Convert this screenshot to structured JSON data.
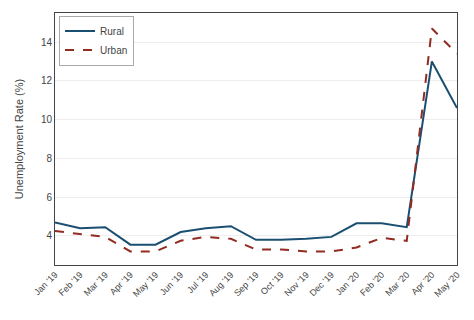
{
  "chart_data": {
    "type": "line",
    "categories": [
      "Jan '19",
      "Feb '19",
      "Mar '19",
      "Apr '19",
      "May '19",
      "Jun '19",
      "Jul '19",
      "Aug '19",
      "Sep '19",
      "Oct '19",
      "Nov '19",
      "Dec '19",
      "Jan '20",
      "Feb '20",
      "Mar '20",
      "Apr '20",
      "May '20"
    ],
    "series": [
      {
        "name": "Rural",
        "color": "#1b4f72",
        "line_style": "solid",
        "values": [
          4.7,
          4.4,
          4.45,
          3.55,
          3.55,
          4.2,
          4.4,
          4.5,
          3.8,
          3.8,
          3.85,
          3.95,
          4.65,
          4.65,
          4.45,
          13.0,
          10.6
        ]
      },
      {
        "name": "Urban",
        "color": "#922b21",
        "line_style": "dashed",
        "values": [
          4.25,
          4.1,
          3.95,
          3.2,
          3.2,
          3.75,
          3.95,
          3.85,
          3.3,
          3.3,
          3.2,
          3.2,
          3.4,
          3.9,
          3.75,
          14.7,
          13.4
        ]
      }
    ],
    "ylabel": "Unemployment Rate (%)",
    "ylim": [
      2.5,
      15.5
    ],
    "yticks": [
      4,
      6,
      8,
      10,
      12,
      14
    ],
    "grid": true,
    "legend": "upper left"
  }
}
